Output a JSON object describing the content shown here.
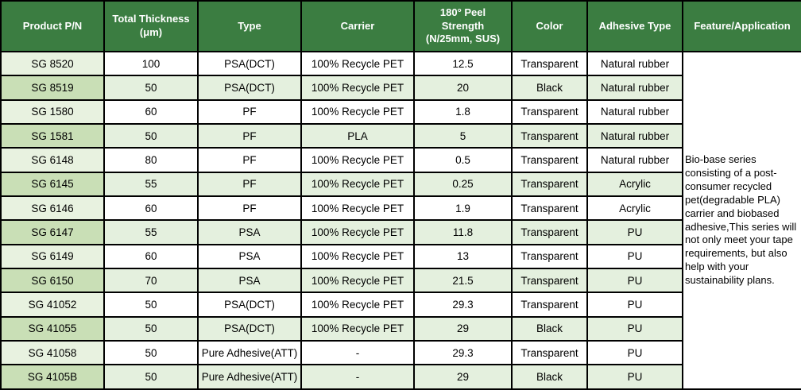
{
  "colors": {
    "header_bg": "#3b7d41",
    "header_text": "#ffffff",
    "row_even_bg": "#e4f0de",
    "row_odd_bg": "#ffffff",
    "firstcol_odd_bg": "#e8f2e0",
    "firstcol_even_bg": "#c9dfb6",
    "border": "#000000",
    "body_text": "#000000"
  },
  "table": {
    "columns": [
      {
        "key": "product-pn",
        "label": "Product P/N"
      },
      {
        "key": "total-thickness",
        "label": "Total Thickness\n(μm)"
      },
      {
        "key": "type",
        "label": "Type"
      },
      {
        "key": "carrier",
        "label": "Carrier"
      },
      {
        "key": "peel-strength",
        "label": "180° Peel\nStrength\n(N/25mm, SUS)"
      },
      {
        "key": "color",
        "label": "Color"
      },
      {
        "key": "adhesive-type",
        "label": "Adhesive Type"
      },
      {
        "key": "feature-application",
        "label": "Feature/Application"
      }
    ],
    "rows": [
      [
        "SG 8520",
        "100",
        "PSA(DCT)",
        "100% Recycle PET",
        "12.5",
        "Transparent",
        "Natural rubber"
      ],
      [
        "SG 8519",
        "50",
        "PSA(DCT)",
        "100% Recycle PET",
        "20",
        "Black",
        "Natural rubber"
      ],
      [
        "SG 1580",
        "60",
        "PF",
        "100% Recycle PET",
        "1.8",
        "Transparent",
        "Natural rubber"
      ],
      [
        "SG 1581",
        "50",
        "PF",
        "PLA",
        "5",
        "Transparent",
        "Natural rubber"
      ],
      [
        "SG 6148",
        "80",
        "PF",
        "100% Recycle PET",
        "0.5",
        "Transparent",
        "Natural rubber"
      ],
      [
        "SG 6145",
        "55",
        "PF",
        "100% Recycle PET",
        "0.25",
        "Transparent",
        "Acrylic"
      ],
      [
        "SG 6146",
        "60",
        "PF",
        "100% Recycle PET",
        "1.9",
        "Transparent",
        "Acrylic"
      ],
      [
        "SG 6147",
        "55",
        "PSA",
        "100% Recycle PET",
        "11.8",
        "Transparent",
        "PU"
      ],
      [
        "SG 6149",
        "60",
        "PSA",
        "100% Recycle PET",
        "13",
        "Transparent",
        "PU"
      ],
      [
        "SG 6150",
        "70",
        "PSA",
        "100% Recycle PET",
        "21.5",
        "Transparent",
        "PU"
      ],
      [
        "SG 41052",
        "50",
        "PSA(DCT)",
        "100% Recycle PET",
        "29.3",
        "Transparent",
        "PU"
      ],
      [
        "SG 41055",
        "50",
        "PSA(DCT)",
        "100% Recycle PET",
        "29",
        "Black",
        "PU"
      ],
      [
        "SG 41058",
        "50",
        "Pure Adhesive(ATT)",
        "-",
        "29.3",
        "Transparent",
        "PU"
      ],
      [
        "SG 4105B",
        "50",
        "Pure Adhesive(ATT)",
        "-",
        "29",
        "Black",
        "PU"
      ]
    ],
    "feature_text": "Bio-base series consisting of a post-consumer recycled pet(degradable PLA) carrier and  biobased adhesive,This series will not only meet your tape requirements, but also help with your sustainability plans."
  }
}
